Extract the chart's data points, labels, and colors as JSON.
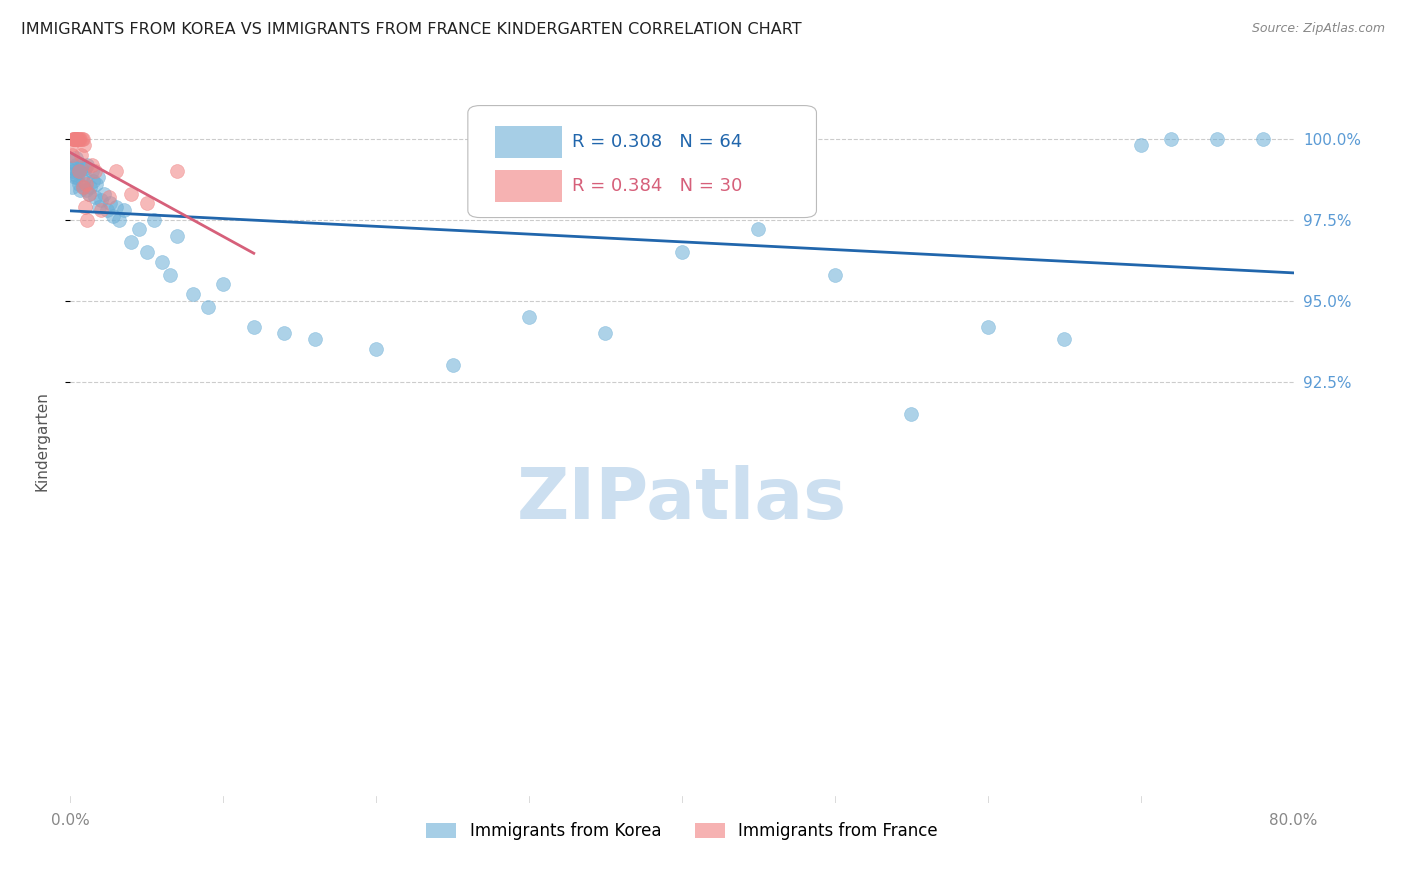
{
  "title": "IMMIGRANTS FROM KOREA VS IMMIGRANTS FROM FRANCE KINDERGARTEN CORRELATION CHART",
  "source": "Source: ZipAtlas.com",
  "ylabel": "Kindergarten",
  "xlim": [
    0.0,
    80.0
  ],
  "ylim": [
    79.5,
    101.8
  ],
  "korea_R": 0.308,
  "korea_N": 64,
  "france_R": 0.384,
  "france_N": 30,
  "korea_color": "#6baed6",
  "france_color": "#f08080",
  "korea_line_color": "#2166ac",
  "france_line_color": "#d6607a",
  "grid_color": "#cccccc",
  "title_color": "#222222",
  "right_tick_color": "#5b9bd5",
  "watermark_color": "#ccdff0",
  "background_color": "#ffffff",
  "korea_x": [
    0.1,
    0.2,
    0.3,
    0.4,
    0.5,
    0.6,
    0.7,
    0.8,
    0.9,
    1.0,
    1.1,
    1.2,
    1.3,
    1.4,
    1.5,
    1.6,
    1.7,
    1.8,
    1.9,
    2.0,
    2.2,
    2.4,
    2.6,
    2.8,
    3.0,
    3.2,
    3.5,
    4.0,
    4.5,
    5.0,
    5.5,
    6.0,
    6.5,
    7.0,
    8.0,
    9.0,
    10.0,
    12.0,
    14.0,
    16.0,
    0.05,
    0.15,
    0.25,
    0.35,
    0.45,
    0.55,
    0.65,
    0.75,
    0.85,
    0.95,
    20.0,
    25.0,
    30.0,
    35.0,
    40.0,
    45.0,
    50.0,
    55.0,
    60.0,
    65.0,
    70.0,
    72.0,
    75.0,
    78.0
  ],
  "korea_y": [
    98.5,
    99.0,
    98.8,
    99.2,
    99.0,
    98.6,
    99.1,
    98.7,
    98.9,
    98.4,
    99.2,
    98.3,
    98.5,
    99.0,
    98.7,
    98.2,
    98.6,
    98.8,
    97.9,
    98.1,
    98.3,
    97.8,
    98.0,
    97.6,
    97.9,
    97.5,
    97.8,
    96.8,
    97.2,
    96.5,
    97.5,
    96.2,
    95.8,
    97.0,
    95.2,
    94.8,
    95.5,
    94.2,
    94.0,
    93.8,
    99.3,
    99.1,
    98.9,
    99.4,
    98.8,
    99.0,
    98.4,
    99.2,
    98.5,
    99.1,
    93.5,
    93.0,
    94.5,
    94.0,
    96.5,
    97.2,
    95.8,
    91.5,
    94.2,
    93.8,
    99.8,
    100.0,
    100.0,
    100.0
  ],
  "france_x": [
    0.05,
    0.1,
    0.15,
    0.2,
    0.25,
    0.3,
    0.35,
    0.4,
    0.45,
    0.5,
    0.55,
    0.6,
    0.65,
    0.7,
    0.75,
    0.8,
    0.85,
    0.9,
    0.95,
    1.0,
    1.1,
    1.2,
    1.4,
    1.6,
    2.0,
    2.5,
    3.0,
    4.0,
    5.0,
    7.0
  ],
  "france_y": [
    99.8,
    99.5,
    100.0,
    100.0,
    100.0,
    100.0,
    100.0,
    100.0,
    100.0,
    100.0,
    99.0,
    100.0,
    100.0,
    99.5,
    100.0,
    98.5,
    100.0,
    99.8,
    97.9,
    98.6,
    97.5,
    98.3,
    99.2,
    99.0,
    97.8,
    98.2,
    99.0,
    98.3,
    98.0,
    99.0
  ],
  "ytick_positions": [
    92.5,
    95.0,
    97.5,
    100.0
  ],
  "ytick_labels": [
    "92.5%",
    "95.0%",
    "97.5%",
    "100.0%"
  ],
  "xtick_positions": [
    0,
    10,
    20,
    30,
    40,
    50,
    60,
    70,
    80
  ],
  "xtick_labels_show_only_edges": true
}
